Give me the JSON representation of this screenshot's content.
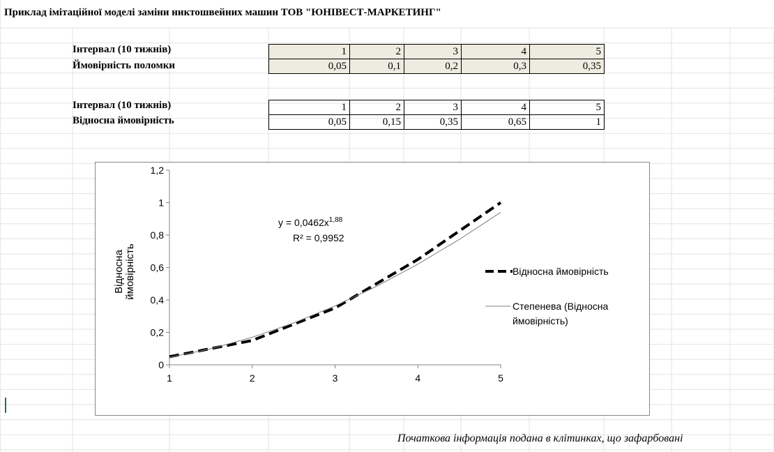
{
  "title": "Приклад імітаційної моделі заміни никтошвейних машин ТОВ \"ЮНІВЕСТ-МАРКЕТИНГ\"",
  "table1": {
    "row1_label": "Інтервал (10 тижнів)",
    "row1_values": [
      "1",
      "2",
      "3",
      "4",
      "5"
    ],
    "row2_label": "Ймовірність поломки",
    "row2_values": [
      "0,05",
      "0,1",
      "0,2",
      "0,3",
      "0,35"
    ]
  },
  "table2": {
    "row1_label": "Інтервал (10 тижнів)",
    "row1_values": [
      "1",
      "2",
      "3",
      "4",
      "5"
    ],
    "row2_label": "Відносна ймовірність",
    "row2_values": [
      "0,05",
      "0,15",
      "0,35",
      "0,65",
      "1"
    ]
  },
  "chart_data": {
    "type": "line",
    "ylabel": "Відносна ймовірність",
    "xlabel": "",
    "xlim": [
      1,
      5
    ],
    "ylim": [
      0,
      1.2
    ],
    "x_ticks": [
      "1",
      "2",
      "3",
      "4",
      "5"
    ],
    "y_ticks": [
      "0",
      "0,2",
      "0,4",
      "0,6",
      "0,8",
      "1",
      "1,2"
    ],
    "grid": false,
    "legend_position": "right",
    "series": [
      {
        "name": "Відносна ймовірність",
        "x": [
          1,
          2,
          3,
          4,
          5
        ],
        "y": [
          0.05,
          0.15,
          0.35,
          0.65,
          1.0
        ],
        "style": "dashed",
        "color": "#000000"
      },
      {
        "name": "Степенева (Відносна ймовірність)",
        "x": [
          1,
          1.5,
          2,
          2.5,
          3,
          3.5,
          4,
          4.5,
          5
        ],
        "y": [
          0.0462,
          0.0991,
          0.1701,
          0.2582,
          0.3629,
          0.4838,
          0.6205,
          0.7727,
          0.9401
        ],
        "style": "solid",
        "color": "#808080"
      }
    ],
    "annotation": {
      "equation_prefix": "y = 0,0462x",
      "equation_exponent": "1,88",
      "r2": "R² = 0,9952"
    },
    "legend": {
      "entry1": "Відносна ймовірність",
      "entry2_line1": "Степенева (Відносна",
      "entry2_line2": "ймовірність)"
    }
  },
  "footnote": "Початкова інформація подана в клітинках, що зафарбовані"
}
